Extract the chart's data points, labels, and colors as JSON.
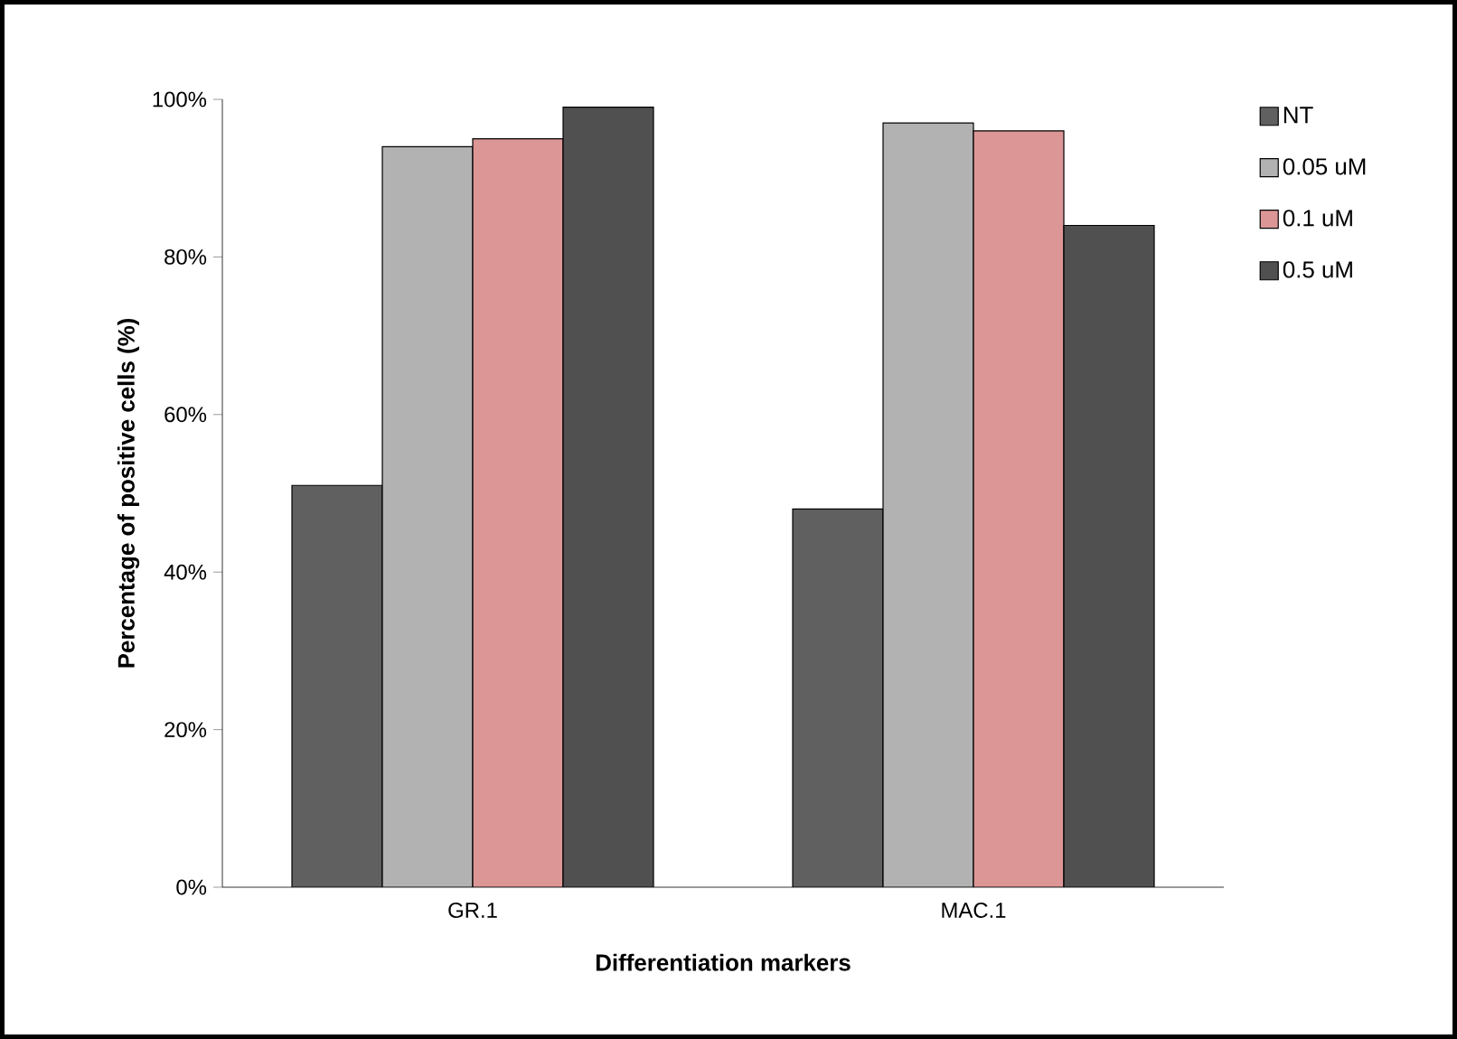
{
  "chart_data": {
    "type": "bar",
    "xlabel": "Differentiation markers",
    "ylabel": "Percentage of positive cells (%)",
    "categories": [
      "GR.1",
      "MAC.1"
    ],
    "series": [
      {
        "name": "NT",
        "color": "#606060",
        "values": [
          51,
          48
        ]
      },
      {
        "name": "0.05 uM",
        "color": "#b2b2b2",
        "values": [
          94,
          97
        ]
      },
      {
        "name": "0.1 uM",
        "color": "#dc9696",
        "values": [
          95,
          96
        ]
      },
      {
        "name": "0.5 uM",
        "color": "#505050",
        "values": [
          99,
          84
        ]
      }
    ],
    "ylim": [
      0,
      100
    ],
    "yticks": [
      {
        "value": 0,
        "label": "0%"
      },
      {
        "value": 20,
        "label": "20%"
      },
      {
        "value": 40,
        "label": "40%"
      },
      {
        "value": 60,
        "label": "60%"
      },
      {
        "value": 80,
        "label": "80%"
      },
      {
        "value": 100,
        "label": "100%"
      }
    ],
    "legend": "top right",
    "grid": false
  }
}
